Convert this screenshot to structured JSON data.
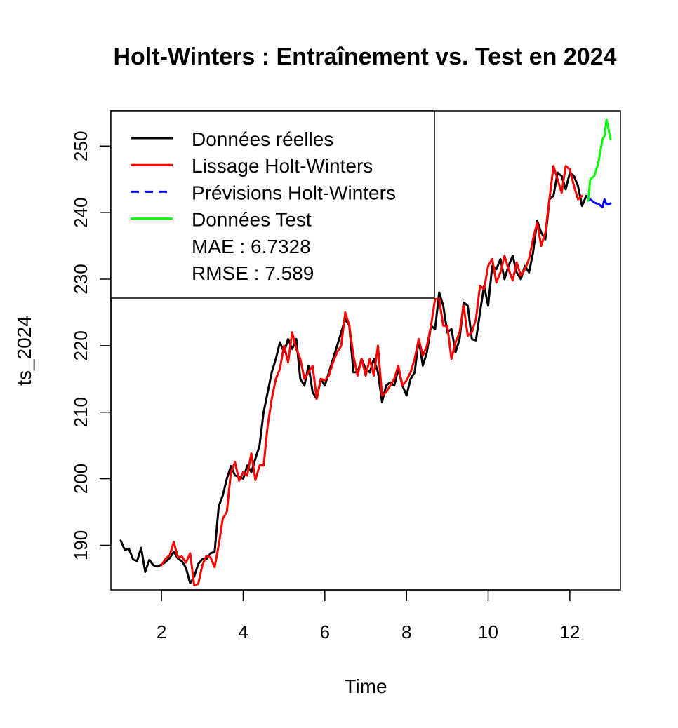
{
  "chart_data": {
    "type": "line",
    "title": "Holt-Winters : Entraînement vs. Test en 2024",
    "xlabel": "Time",
    "ylabel": "ts_2024",
    "xlim": [
      0.76,
      13.24
    ],
    "ylim": [
      183.3,
      255.3
    ],
    "x_ticks": [
      2,
      4,
      6,
      8,
      10,
      12
    ],
    "y_ticks": [
      190,
      200,
      210,
      220,
      230,
      240,
      250
    ],
    "legend_position": "top-left",
    "legend": {
      "entries": [
        {
          "label": "Données réelles",
          "color": "#000000",
          "dash": "solid"
        },
        {
          "label": "Lissage Holt-Winters",
          "color": "#ff0000",
          "dash": "solid"
        },
        {
          "label": "Prévisions Holt-Winters",
          "color": "#0000ff",
          "dash": "dashed"
        },
        {
          "label": "Données Test",
          "color": "#00ff00",
          "dash": "solid"
        }
      ],
      "notes": [
        "MAE : 6.7328",
        "RMSE : 7.589"
      ]
    },
    "series": [
      {
        "name": "Données réelles",
        "color": "#000000",
        "points": [
          [
            1.0,
            190.7
          ],
          [
            1.1,
            189.3
          ],
          [
            1.2,
            189.5
          ],
          [
            1.3,
            187.9
          ],
          [
            1.4,
            187.6
          ],
          [
            1.5,
            189.6
          ],
          [
            1.6,
            186.0
          ],
          [
            1.7,
            187.8
          ],
          [
            1.8,
            187.0
          ],
          [
            1.9,
            186.8
          ],
          [
            2.0,
            187.1
          ],
          [
            2.1,
            187.5
          ],
          [
            2.2,
            188.1
          ],
          [
            2.3,
            189.0
          ],
          [
            2.4,
            188.0
          ],
          [
            2.5,
            187.6
          ],
          [
            2.6,
            186.6
          ],
          [
            2.7,
            184.3
          ],
          [
            2.8,
            185.3
          ],
          [
            2.9,
            187.2
          ],
          [
            3.0,
            187.9
          ],
          [
            3.1,
            187.9
          ],
          [
            3.2,
            188.8
          ],
          [
            3.3,
            189.0
          ],
          [
            3.4,
            195.8
          ],
          [
            3.5,
            197.5
          ],
          [
            3.6,
            200.0
          ],
          [
            3.7,
            201.9
          ],
          [
            3.8,
            200.5
          ],
          [
            3.9,
            200.3
          ],
          [
            4.0,
            200.0
          ],
          [
            4.1,
            202.0
          ],
          [
            4.2,
            201.0
          ],
          [
            4.3,
            203.0
          ],
          [
            4.4,
            205.0
          ],
          [
            4.5,
            210.0
          ],
          [
            4.6,
            213.0
          ],
          [
            4.7,
            216.0
          ],
          [
            4.8,
            218.0
          ],
          [
            4.9,
            220.5
          ],
          [
            5.0,
            219.0
          ],
          [
            5.1,
            221.0
          ],
          [
            5.2,
            219.5
          ],
          [
            5.3,
            221.0
          ],
          [
            5.4,
            215.0
          ],
          [
            5.5,
            214.0
          ],
          [
            5.6,
            217.0
          ],
          [
            5.7,
            213.0
          ],
          [
            5.8,
            212.0
          ],
          [
            5.9,
            215.0
          ],
          [
            6.0,
            214.0
          ],
          [
            6.1,
            216.0
          ],
          [
            6.2,
            218.0
          ],
          [
            6.3,
            220.0
          ],
          [
            6.4,
            222.0
          ],
          [
            6.5,
            224.0
          ],
          [
            6.6,
            223.0
          ],
          [
            6.7,
            216.0
          ],
          [
            6.8,
            216.0
          ],
          [
            6.9,
            218.0
          ],
          [
            7.0,
            216.5
          ],
          [
            7.1,
            216.0
          ],
          [
            7.2,
            218.0
          ],
          [
            7.3,
            216.0
          ],
          [
            7.4,
            211.5
          ],
          [
            7.5,
            214.0
          ],
          [
            7.6,
            214.5
          ],
          [
            7.7,
            214.0
          ],
          [
            7.8,
            216.5
          ],
          [
            7.9,
            214.0
          ],
          [
            8.0,
            212.5
          ],
          [
            8.1,
            215.0
          ],
          [
            8.2,
            216.0
          ],
          [
            8.3,
            221.0
          ],
          [
            8.4,
            217.0
          ],
          [
            8.5,
            219.0
          ],
          [
            8.6,
            223.0
          ],
          [
            8.7,
            222.5
          ],
          [
            8.8,
            228.0
          ],
          [
            8.9,
            226.0
          ],
          [
            9.0,
            222.0
          ],
          [
            9.1,
            222.5
          ],
          [
            9.2,
            219.0
          ],
          [
            9.3,
            221.0
          ],
          [
            9.4,
            226.5
          ],
          [
            9.5,
            226.0
          ],
          [
            9.6,
            221.0
          ],
          [
            9.7,
            220.8
          ],
          [
            9.8,
            225.0
          ],
          [
            9.9,
            229.0
          ],
          [
            10.0,
            226.0
          ],
          [
            10.1,
            232.0
          ],
          [
            10.2,
            231.5
          ],
          [
            10.3,
            233.0
          ],
          [
            10.4,
            230.0
          ],
          [
            10.5,
            232.0
          ],
          [
            10.6,
            233.5
          ],
          [
            10.7,
            231.0
          ],
          [
            10.8,
            230.0
          ],
          [
            10.9,
            232.0
          ],
          [
            11.0,
            231.0
          ],
          [
            11.1,
            234.0
          ],
          [
            11.2,
            238.8
          ],
          [
            11.3,
            237.0
          ],
          [
            11.4,
            236.0
          ],
          [
            11.5,
            242.0
          ],
          [
            11.6,
            242.5
          ],
          [
            11.7,
            246.0
          ],
          [
            11.8,
            245.5
          ],
          [
            11.9,
            243.5
          ],
          [
            12.0,
            246.0
          ],
          [
            12.1,
            245.5
          ],
          [
            12.2,
            244.0
          ],
          [
            12.3,
            241.0
          ],
          [
            12.4,
            242.5
          ]
        ]
      },
      {
        "name": "Lissage Holt-Winters",
        "color": "#ff0000",
        "points": [
          [
            2.0,
            187.0
          ],
          [
            2.1,
            188.0
          ],
          [
            2.2,
            188.5
          ],
          [
            2.3,
            190.5
          ],
          [
            2.4,
            188.2
          ],
          [
            2.5,
            188.3
          ],
          [
            2.6,
            187.4
          ],
          [
            2.7,
            188.8
          ],
          [
            2.8,
            184.0
          ],
          [
            2.9,
            184.2
          ],
          [
            3.0,
            187.0
          ],
          [
            3.1,
            188.4
          ],
          [
            3.2,
            188.2
          ],
          [
            3.3,
            186.7
          ],
          [
            3.4,
            190.0
          ],
          [
            3.5,
            194.0
          ],
          [
            3.6,
            195.0
          ],
          [
            3.7,
            201.0
          ],
          [
            3.8,
            202.5
          ],
          [
            3.9,
            199.7
          ],
          [
            4.0,
            201.0
          ],
          [
            4.1,
            200.5
          ],
          [
            4.2,
            203.8
          ],
          [
            4.3,
            199.8
          ],
          [
            4.4,
            202.0
          ],
          [
            4.5,
            202.0
          ],
          [
            4.6,
            208.0
          ],
          [
            4.7,
            212.0
          ],
          [
            4.8,
            215.0
          ],
          [
            4.9,
            216.5
          ],
          [
            5.0,
            220.0
          ],
          [
            5.1,
            217.5
          ],
          [
            5.2,
            222.0
          ],
          [
            5.3,
            219.5
          ],
          [
            5.4,
            218.0
          ],
          [
            5.5,
            215.0
          ],
          [
            5.6,
            216.0
          ],
          [
            5.7,
            217.0
          ],
          [
            5.8,
            212.0
          ],
          [
            5.9,
            215.0
          ],
          [
            6.0,
            214.8
          ],
          [
            6.1,
            215.5
          ],
          [
            6.2,
            217.5
          ],
          [
            6.3,
            219.0
          ],
          [
            6.4,
            220.0
          ],
          [
            6.5,
            225.0
          ],
          [
            6.6,
            223.0
          ],
          [
            6.7,
            218.5
          ],
          [
            6.8,
            215.5
          ],
          [
            6.9,
            218.0
          ],
          [
            7.0,
            215.5
          ],
          [
            7.1,
            218.0
          ],
          [
            7.2,
            215.5
          ],
          [
            7.3,
            220.0
          ],
          [
            7.4,
            212.5
          ],
          [
            7.5,
            213.0
          ],
          [
            7.6,
            214.0
          ],
          [
            7.7,
            215.0
          ],
          [
            7.8,
            217.0
          ],
          [
            7.9,
            214.0
          ],
          [
            8.0,
            214.8
          ],
          [
            8.1,
            216.0
          ],
          [
            8.2,
            218.0
          ],
          [
            8.3,
            221.0
          ],
          [
            8.4,
            218.5
          ],
          [
            8.5,
            220.0
          ],
          [
            8.6,
            223.0
          ],
          [
            8.7,
            227.0
          ],
          [
            8.8,
            227.0
          ],
          [
            8.9,
            223.0
          ],
          [
            9.0,
            223.0
          ],
          [
            9.1,
            218.0
          ],
          [
            9.2,
            220.5
          ],
          [
            9.3,
            222.0
          ],
          [
            9.4,
            226.0
          ],
          [
            9.5,
            221.5
          ],
          [
            9.6,
            222.0
          ],
          [
            9.7,
            224.0
          ],
          [
            9.8,
            229.0
          ],
          [
            9.9,
            228.5
          ],
          [
            10.0,
            232.0
          ],
          [
            10.1,
            233.0
          ],
          [
            10.2,
            229.5
          ],
          [
            10.3,
            231.0
          ],
          [
            10.4,
            233.5
          ],
          [
            10.5,
            231.5
          ],
          [
            10.6,
            229.8
          ],
          [
            10.7,
            232.5
          ],
          [
            10.8,
            230.5
          ],
          [
            10.9,
            231.5
          ],
          [
            11.0,
            233.0
          ],
          [
            11.1,
            236.0
          ],
          [
            11.2,
            238.5
          ],
          [
            11.3,
            235.0
          ],
          [
            11.4,
            237.0
          ],
          [
            11.5,
            242.0
          ],
          [
            11.6,
            247.0
          ],
          [
            11.7,
            245.0
          ],
          [
            11.8,
            243.0
          ],
          [
            11.9,
            247.0
          ],
          [
            12.0,
            246.5
          ],
          [
            12.1,
            244.0
          ],
          [
            12.2,
            242.0
          ],
          [
            12.3,
            242.5
          ]
        ]
      },
      {
        "name": "Prévisions Holt-Winters",
        "color": "#0000ff",
        "dash": "solid-render",
        "points": [
          [
            12.45,
            241.8
          ],
          [
            12.5,
            242.0
          ],
          [
            12.6,
            241.5
          ],
          [
            12.7,
            241.3
          ],
          [
            12.8,
            240.8
          ],
          [
            12.85,
            242.0
          ],
          [
            12.9,
            241.2
          ],
          [
            13.0,
            241.4
          ]
        ]
      },
      {
        "name": "Données Test",
        "color": "#00ff00",
        "points": [
          [
            12.45,
            241.8
          ],
          [
            12.5,
            245.0
          ],
          [
            12.6,
            245.5
          ],
          [
            12.7,
            247.5
          ],
          [
            12.8,
            251.0
          ],
          [
            12.85,
            251.5
          ],
          [
            12.9,
            254.0
          ],
          [
            13.0,
            251.0
          ]
        ]
      }
    ]
  }
}
